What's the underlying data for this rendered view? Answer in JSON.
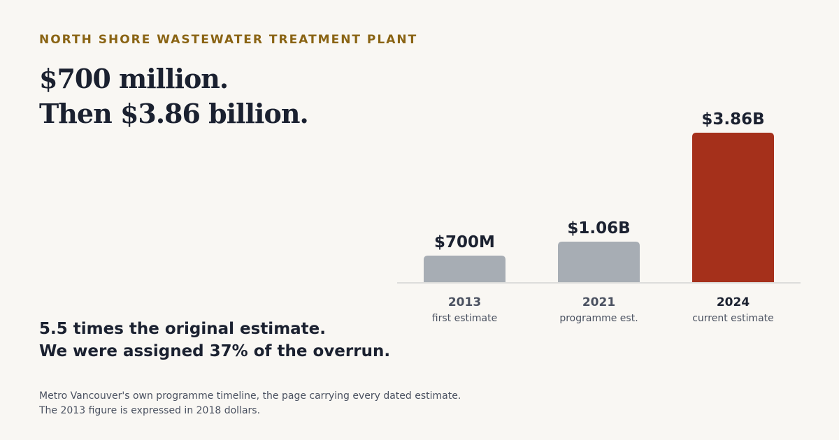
{
  "eyebrow": "NORTH SHORE WASTEWATER TREATMENT PLANT",
  "headline": {
    "line1": "$700 million.",
    "line2": "Then $3.86 billion."
  },
  "takeaway": {
    "line1": "5.5 times the original estimate.",
    "line2": "We were assigned 37% of the overrun."
  },
  "source": {
    "line1": "Metro Vancouver's own programme timeline, the page carrying every dated estimate.",
    "line2": "The 2013 figure is expressed in 2018 dollars."
  },
  "colors": {
    "accent": "#8a6414",
    "bar_past": "#a7adb4",
    "bar_current": "#a5301b",
    "text": "#1b2130",
    "muted": "#4a5160",
    "baseline": "#dddddb"
  },
  "chart_data": {
    "type": "bar",
    "title": "",
    "xlabel": "",
    "ylabel": "",
    "ylim": [
      0,
      3.86
    ],
    "grid": false,
    "categories": [
      "2013",
      "2021",
      "2024"
    ],
    "subcategories": [
      "first estimate",
      "programme est.",
      "current estimate"
    ],
    "values": [
      0.7,
      1.06,
      3.86
    ],
    "value_labels": [
      "$700M",
      "$1.06B",
      "$3.86B"
    ],
    "highlight_index": 2
  }
}
